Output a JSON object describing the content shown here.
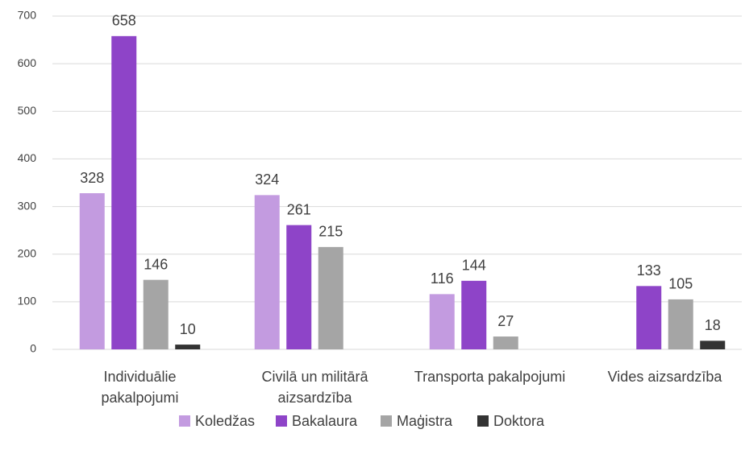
{
  "chart_data": {
    "type": "bar",
    "categories": [
      "Individuālie pakalpojumi",
      "Civilā un militārā aizsardzība",
      "Transporta pakalpojumi",
      "Vides aizsardzība"
    ],
    "series": [
      {
        "name": "Koledžas",
        "color": "#c39be0",
        "values": [
          328,
          324,
          116,
          null
        ]
      },
      {
        "name": "Bakalaura",
        "color": "#8e44c8",
        "values": [
          658,
          261,
          144,
          133
        ]
      },
      {
        "name": "Maģistra",
        "color": "#a5a5a5",
        "values": [
          146,
          215,
          27,
          105
        ]
      },
      {
        "name": "Doktora",
        "color": "#333333",
        "values": [
          10,
          null,
          null,
          18
        ]
      }
    ],
    "ylim": [
      0,
      700
    ],
    "yticks": [
      0,
      100,
      200,
      300,
      400,
      500,
      600,
      700
    ],
    "grid": true,
    "legend": "bottom"
  }
}
